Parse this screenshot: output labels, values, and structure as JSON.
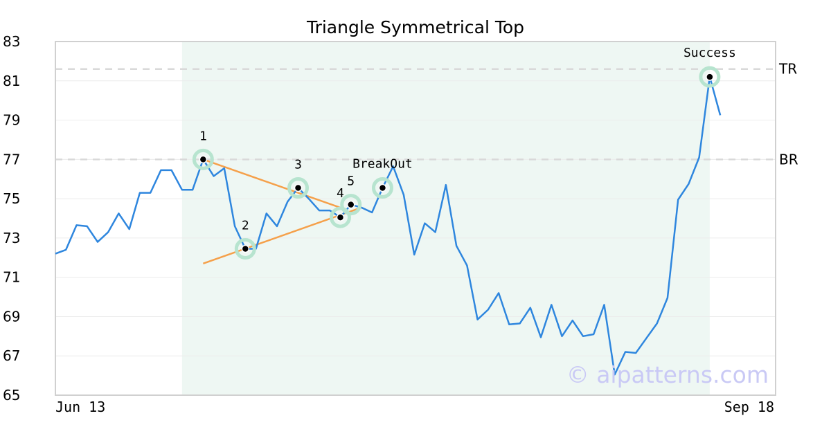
{
  "chart_data": {
    "type": "line",
    "title": "Triangle Symmetrical Top",
    "xlabel": "",
    "ylabel": "",
    "ylim": [
      65,
      83
    ],
    "yticks": [
      "65",
      "67",
      "69",
      "71",
      "73",
      "75",
      "77",
      "79",
      "81",
      "83"
    ],
    "x_tick_labels": [
      "Jun 13",
      "Sep 18"
    ],
    "grid": "horizontal",
    "colors": {
      "price": "#2e86de",
      "trendline": "#f5a04a",
      "pattern_region": "#eef7f3",
      "marker_halo": "#b7e4cf",
      "reference_line": "#d9d9d9",
      "axes": "#d0d0d0",
      "watermark": "#c9c9f5"
    },
    "series": [
      {
        "values": [
          72.2,
          72.4,
          73.65,
          73.6,
          72.8,
          73.3,
          74.25,
          73.45,
          75.3,
          75.3,
          76.45,
          76.45,
          75.45,
          75.45,
          77.0,
          76.15,
          76.55,
          73.6,
          72.45,
          72.45,
          74.25,
          73.6,
          74.85,
          75.55,
          75.0,
          74.4,
          74.4,
          74.05,
          74.7,
          74.55,
          74.3,
          75.55,
          76.65,
          75.2,
          72.15,
          73.75,
          73.3,
          75.7,
          72.6,
          71.6,
          68.85,
          69.35,
          70.2,
          68.6,
          68.65,
          69.45,
          67.95,
          69.6,
          68.0,
          68.8,
          68.0,
          68.1,
          69.6,
          66.05,
          67.2,
          67.15,
          67.9,
          68.65,
          69.95,
          74.95,
          75.75,
          77.1,
          81.2,
          79.25
        ]
      }
    ],
    "pattern_region": {
      "start_index": 12,
      "end_index": 62
    },
    "reference_lines": [
      {
        "label": "TR",
        "value": 81.6
      },
      {
        "label": "BR",
        "value": 77.0
      }
    ],
    "trendlines": [
      {
        "from": [
          14,
          77.0
        ],
        "to": [
          27.5,
          74.45
        ]
      },
      {
        "from": [
          14,
          71.7
        ],
        "to": [
          29,
          74.55
        ]
      }
    ],
    "points": [
      {
        "label": "1",
        "index": 14,
        "value": 77.0
      },
      {
        "label": "2",
        "index": 18,
        "value": 72.45
      },
      {
        "label": "3",
        "index": 23,
        "value": 75.55
      },
      {
        "label": "4",
        "index": 27,
        "value": 74.05
      },
      {
        "label": "5",
        "index": 28,
        "value": 74.7
      },
      {
        "label": "BreakOut",
        "index": 31,
        "value": 75.55
      },
      {
        "label": "Success",
        "index": 62,
        "value": 81.2
      }
    ],
    "watermark": "© aipatterns.com"
  }
}
